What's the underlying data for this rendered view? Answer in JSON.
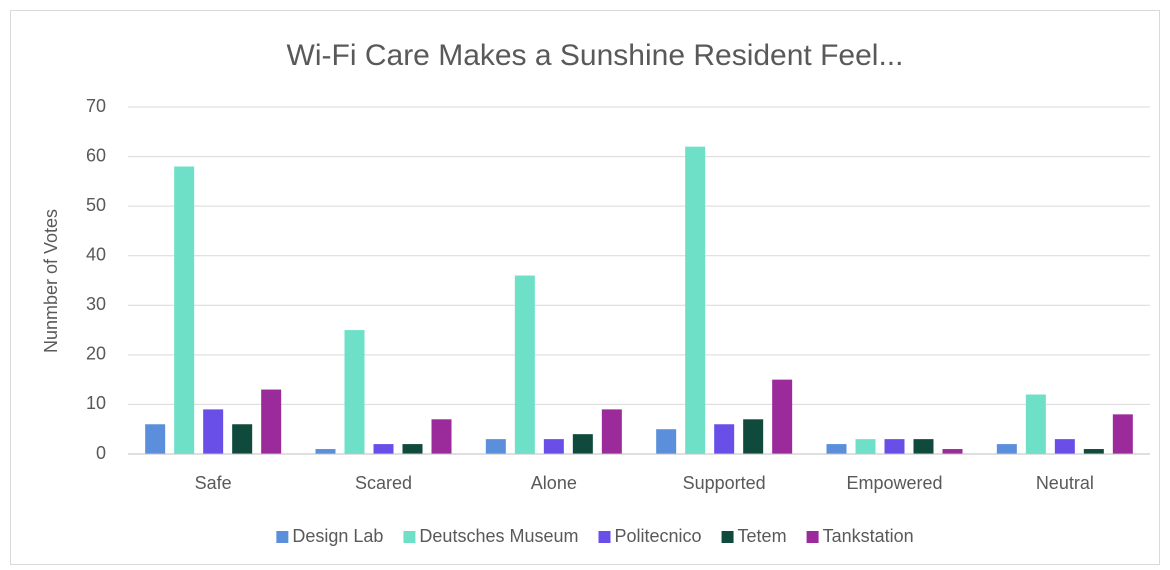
{
  "chart_data": {
    "type": "bar",
    "title": "Wi-Fi Care Makes a Sunshine Resident Feel...",
    "y_label": "Nunmber of Votes",
    "categories": [
      "Safe",
      "Scared",
      "Alone",
      "Supported",
      "Empowered",
      "Neutral"
    ],
    "series": [
      {
        "name": "Design Lab",
        "color": "#5b8fdb",
        "values": [
          6,
          1,
          3,
          5,
          2,
          2
        ]
      },
      {
        "name": "Deutsches Museum",
        "color": "#6fe0c8",
        "values": [
          58,
          25,
          36,
          62,
          3,
          12
        ]
      },
      {
        "name": "Politecnico",
        "color": "#6a4ee8",
        "values": [
          9,
          2,
          3,
          6,
          3,
          3
        ]
      },
      {
        "name": "Tetem",
        "color": "#0f4a3c",
        "values": [
          6,
          2,
          4,
          7,
          3,
          1
        ]
      },
      {
        "name": "Tankstation",
        "color": "#9b2a9b",
        "values": [
          13,
          7,
          9,
          15,
          1,
          8
        ]
      }
    ],
    "ylim": [
      0,
      70
    ],
    "yticks": [
      0,
      10,
      20,
      30,
      40,
      50,
      60,
      70
    ],
    "grid": true,
    "legend": "bottom"
  }
}
